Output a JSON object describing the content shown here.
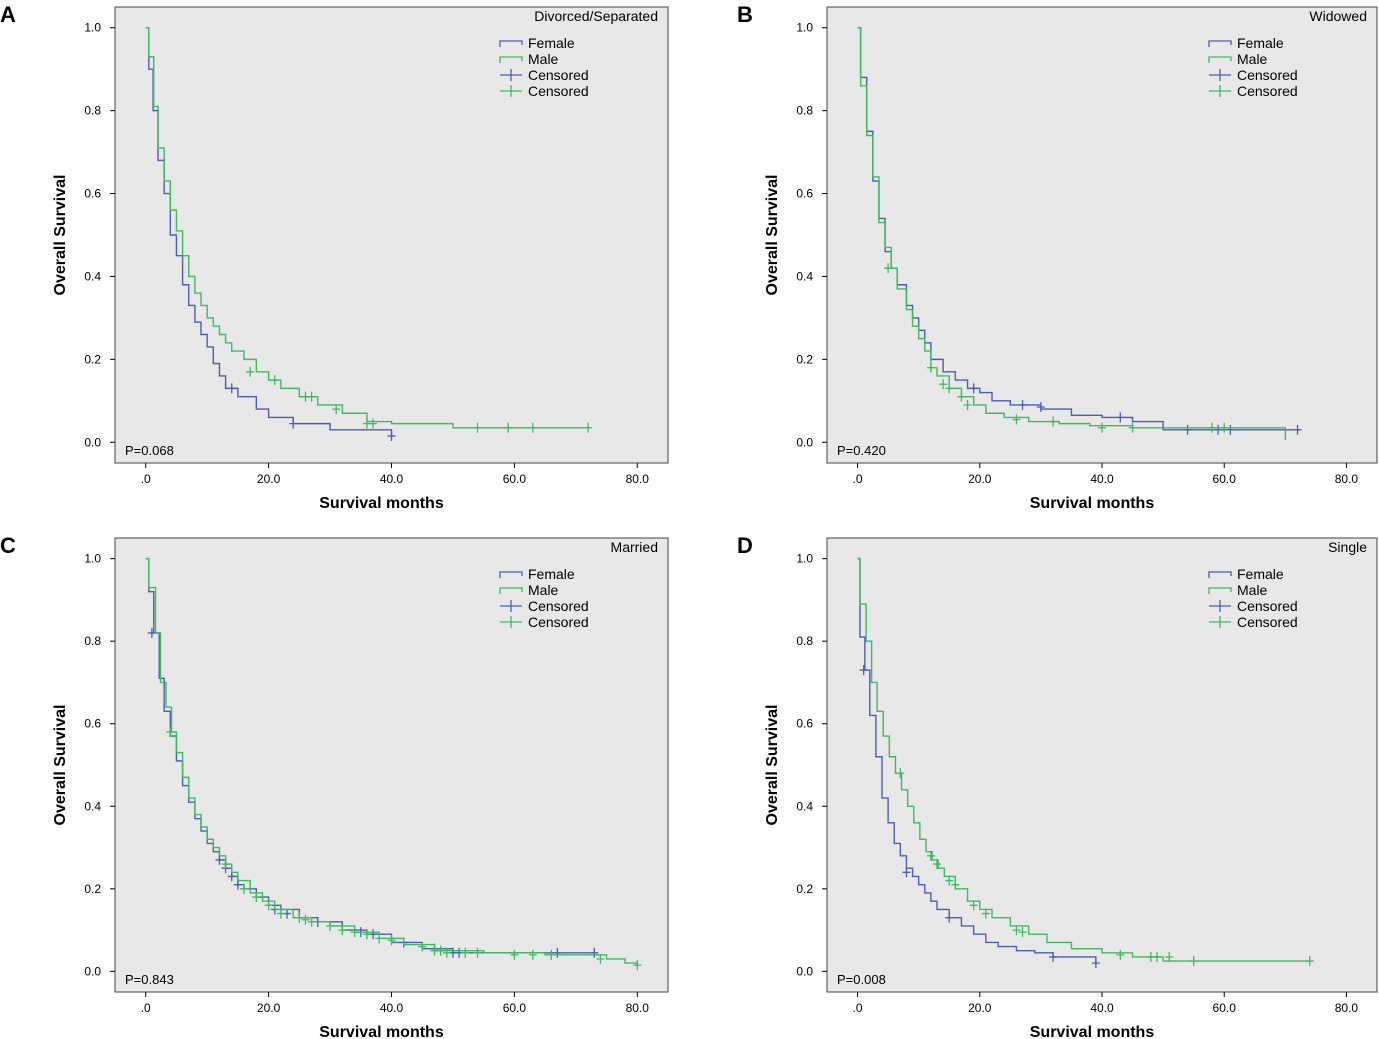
{
  "colors": {
    "female": "#4a5fb0",
    "male": "#3fba5f",
    "background": "#e8e8e8"
  },
  "chart_data": [
    {
      "type": "line",
      "panel": "A",
      "group": "Divorced/Separated",
      "p_value": "P=0.068",
      "xlabel": "Survival months",
      "ylabel": "Overall Survival",
      "xlim": [
        -5,
        85
      ],
      "ylim": [
        -0.05,
        1.05
      ],
      "xticks": [
        ".0",
        "20.0",
        "40.0",
        "60.0",
        "80.0"
      ],
      "yticks": [
        "0.0",
        "0.2",
        "0.4",
        "0.6",
        "0.8",
        "1.0"
      ],
      "legend": [
        "Female",
        "Male",
        "Censored",
        "Censored"
      ],
      "series": [
        {
          "name": "Female",
          "x": [
            0,
            0.5,
            1.2,
            2,
            3,
            4,
            5,
            6,
            7,
            8,
            9,
            10,
            11,
            12,
            13,
            15,
            18,
            20,
            24,
            30,
            40
          ],
          "y": [
            1.0,
            0.9,
            0.8,
            0.68,
            0.6,
            0.5,
            0.45,
            0.38,
            0.33,
            0.29,
            0.26,
            0.23,
            0.19,
            0.16,
            0.13,
            0.11,
            0.08,
            0.06,
            0.045,
            0.03,
            0.015
          ],
          "censored_x": [
            14,
            24,
            40
          ],
          "censored_y": [
            0.13,
            0.045,
            0.015
          ]
        },
        {
          "name": "Male",
          "x": [
            0,
            0.5,
            1.3,
            2,
            3,
            4,
            5,
            6,
            7,
            8,
            9,
            10,
            11,
            12,
            13,
            14,
            16,
            18,
            20,
            22,
            25,
            28,
            32,
            36,
            40,
            50,
            72
          ],
          "y": [
            1.0,
            0.93,
            0.81,
            0.71,
            0.63,
            0.56,
            0.51,
            0.45,
            0.4,
            0.36,
            0.33,
            0.3,
            0.28,
            0.26,
            0.24,
            0.22,
            0.2,
            0.17,
            0.15,
            0.13,
            0.11,
            0.09,
            0.07,
            0.05,
            0.045,
            0.035,
            0.035
          ],
          "censored_x": [
            17,
            21,
            26,
            27,
            31,
            36,
            37,
            54,
            59,
            63,
            72
          ],
          "censored_y": [
            0.17,
            0.15,
            0.11,
            0.11,
            0.08,
            0.045,
            0.045,
            0.035,
            0.035,
            0.035,
            0.035
          ]
        }
      ]
    },
    {
      "type": "line",
      "panel": "B",
      "group": "Widowed",
      "p_value": "P=0.420",
      "xlabel": "Survival months",
      "ylabel": "Overall Survival",
      "xlim": [
        -5,
        85
      ],
      "ylim": [
        -0.05,
        1.05
      ],
      "xticks": [
        ".0",
        "20.0",
        "40.0",
        "60.0",
        "80.0"
      ],
      "yticks": [
        "0.0",
        "0.2",
        "0.4",
        "0.6",
        "0.8",
        "1.0"
      ],
      "legend": [
        "Female",
        "Male",
        "Censored",
        "Censored"
      ],
      "series": [
        {
          "name": "Female",
          "x": [
            0,
            0.5,
            1.5,
            2.5,
            3.5,
            4.5,
            5.5,
            6.5,
            8,
            9,
            10,
            11,
            12,
            14,
            16,
            18,
            20,
            22,
            25,
            30,
            35,
            40,
            45,
            50,
            72
          ],
          "y": [
            1.0,
            0.88,
            0.75,
            0.63,
            0.54,
            0.46,
            0.42,
            0.38,
            0.33,
            0.3,
            0.27,
            0.24,
            0.2,
            0.17,
            0.15,
            0.13,
            0.12,
            0.1,
            0.09,
            0.08,
            0.065,
            0.06,
            0.05,
            0.03,
            0.03
          ],
          "censored_x": [
            19,
            27,
            30,
            43,
            54,
            59,
            61,
            72
          ],
          "censored_y": [
            0.13,
            0.09,
            0.085,
            0.06,
            0.03,
            0.03,
            0.03,
            0.03
          ]
        },
        {
          "name": "Male",
          "x": [
            0,
            0.5,
            1.5,
            2.5,
            3.5,
            4.5,
            5.5,
            6.5,
            8,
            9,
            10,
            11,
            12,
            13,
            15,
            17,
            19,
            21,
            24,
            28,
            33,
            38,
            45,
            50,
            70
          ],
          "y": [
            1.0,
            0.86,
            0.74,
            0.64,
            0.53,
            0.47,
            0.42,
            0.37,
            0.32,
            0.28,
            0.25,
            0.22,
            0.18,
            0.16,
            0.13,
            0.11,
            0.09,
            0.07,
            0.06,
            0.05,
            0.045,
            0.04,
            0.035,
            0.035,
            0.005
          ],
          "censored_x": [
            5,
            12,
            14,
            15,
            17,
            18,
            26,
            32,
            40,
            45,
            58,
            60
          ],
          "censored_y": [
            0.42,
            0.18,
            0.14,
            0.13,
            0.11,
            0.09,
            0.055,
            0.05,
            0.035,
            0.035,
            0.035,
            0.035
          ]
        }
      ]
    },
    {
      "type": "line",
      "panel": "C",
      "group": "Married",
      "p_value": "P=0.843",
      "xlabel": "Survival months",
      "ylabel": "Overall Survival",
      "xlim": [
        -5,
        85
      ],
      "ylim": [
        -0.05,
        1.05
      ],
      "xticks": [
        ".0",
        "20.0",
        "40.0",
        "60.0",
        "80.0"
      ],
      "yticks": [
        "0.0",
        "0.2",
        "0.4",
        "0.6",
        "0.8",
        "1.0"
      ],
      "legend": [
        "Female",
        "Male",
        "Censored",
        "Censored"
      ],
      "series": [
        {
          "name": "Female",
          "x": [
            0,
            0.5,
            1.3,
            2.2,
            3,
            4,
            5,
            6,
            7,
            8,
            9,
            10,
            11,
            12,
            13,
            14,
            15,
            16,
            18,
            20,
            22,
            25,
            28,
            32,
            36,
            40,
            45,
            50,
            60,
            73
          ],
          "y": [
            1.0,
            0.92,
            0.82,
            0.71,
            0.63,
            0.57,
            0.51,
            0.45,
            0.41,
            0.37,
            0.34,
            0.31,
            0.29,
            0.27,
            0.25,
            0.23,
            0.21,
            0.2,
            0.18,
            0.16,
            0.15,
            0.13,
            0.12,
            0.1,
            0.09,
            0.07,
            0.055,
            0.045,
            0.045,
            0.045
          ],
          "censored_x": [
            1,
            12,
            13,
            14,
            15,
            21,
            23,
            28,
            35,
            37,
            42,
            47,
            50,
            51,
            67,
            73
          ],
          "censored_y": [
            0.82,
            0.27,
            0.25,
            0.23,
            0.21,
            0.15,
            0.14,
            0.12,
            0.095,
            0.09,
            0.07,
            0.055,
            0.045,
            0.045,
            0.045,
            0.045
          ]
        },
        {
          "name": "Male",
          "x": [
            0,
            0.5,
            1.6,
            2.4,
            3.3,
            4.2,
            5,
            6,
            7,
            8,
            9,
            10,
            11,
            12,
            13,
            14,
            15,
            17,
            19,
            21,
            24,
            27,
            30,
            34,
            38,
            42,
            47,
            55,
            65,
            75,
            78,
            80
          ],
          "y": [
            1.0,
            0.93,
            0.82,
            0.7,
            0.64,
            0.58,
            0.53,
            0.47,
            0.42,
            0.38,
            0.35,
            0.32,
            0.3,
            0.28,
            0.26,
            0.24,
            0.22,
            0.19,
            0.17,
            0.15,
            0.13,
            0.12,
            0.11,
            0.095,
            0.08,
            0.065,
            0.05,
            0.045,
            0.04,
            0.03,
            0.02,
            0.015
          ],
          "censored_x": [
            4,
            13,
            16,
            18,
            20,
            22,
            25,
            26,
            27,
            30,
            32,
            34,
            36,
            38,
            40,
            45,
            47,
            48,
            49,
            52,
            54,
            60,
            63,
            66,
            74,
            80
          ],
          "censored_y": [
            0.58,
            0.26,
            0.2,
            0.18,
            0.16,
            0.14,
            0.13,
            0.125,
            0.12,
            0.11,
            0.1,
            0.095,
            0.09,
            0.08,
            0.075,
            0.06,
            0.05,
            0.05,
            0.045,
            0.045,
            0.045,
            0.04,
            0.04,
            0.04,
            0.03,
            0.015
          ]
        }
      ]
    },
    {
      "type": "line",
      "panel": "D",
      "group": "Single",
      "p_value": "P=0.008",
      "xlabel": "Survival months",
      "ylabel": "Overall Survival",
      "xlim": [
        -5,
        85
      ],
      "ylim": [
        -0.05,
        1.05
      ],
      "xticks": [
        ".0",
        "20.0",
        "40.0",
        "60.0",
        "80.0"
      ],
      "yticks": [
        "0.0",
        "0.2",
        "0.4",
        "0.6",
        "0.8",
        "1.0"
      ],
      "legend": [
        "Female",
        "Male",
        "Censored",
        "Censored"
      ],
      "series": [
        {
          "name": "Female",
          "x": [
            0,
            0.4,
            1.2,
            2,
            3,
            4,
            5,
            6,
            7,
            8,
            9,
            10,
            11,
            12,
            13,
            15,
            17,
            19,
            21,
            23,
            26,
            29,
            32,
            39
          ],
          "y": [
            1.0,
            0.81,
            0.73,
            0.62,
            0.52,
            0.42,
            0.36,
            0.31,
            0.28,
            0.25,
            0.23,
            0.21,
            0.19,
            0.17,
            0.15,
            0.13,
            0.11,
            0.09,
            0.07,
            0.06,
            0.05,
            0.045,
            0.035,
            0.02
          ],
          "censored_x": [
            1,
            8,
            15,
            32,
            39
          ],
          "censored_y": [
            0.73,
            0.24,
            0.13,
            0.035,
            0.02
          ]
        },
        {
          "name": "Male",
          "x": [
            0,
            0.4,
            1.4,
            2.3,
            3.2,
            4.2,
            5.2,
            6.2,
            7.2,
            8.2,
            9.2,
            10.2,
            11.2,
            12.2,
            13.2,
            14.2,
            16,
            18,
            20,
            22,
            25,
            28,
            31,
            35,
            40,
            45,
            50,
            74
          ],
          "y": [
            1.0,
            0.89,
            0.8,
            0.7,
            0.63,
            0.57,
            0.52,
            0.48,
            0.44,
            0.4,
            0.36,
            0.32,
            0.29,
            0.27,
            0.25,
            0.23,
            0.2,
            0.17,
            0.15,
            0.13,
            0.11,
            0.09,
            0.07,
            0.055,
            0.045,
            0.035,
            0.025,
            0.025
          ],
          "censored_x": [
            7,
            12,
            13,
            15,
            16,
            19,
            21,
            26,
            27,
            43,
            48,
            49,
            51,
            55,
            74
          ],
          "censored_y": [
            0.48,
            0.28,
            0.26,
            0.22,
            0.21,
            0.16,
            0.14,
            0.1,
            0.095,
            0.04,
            0.035,
            0.035,
            0.035,
            0.025,
            0.025
          ]
        }
      ]
    }
  ]
}
